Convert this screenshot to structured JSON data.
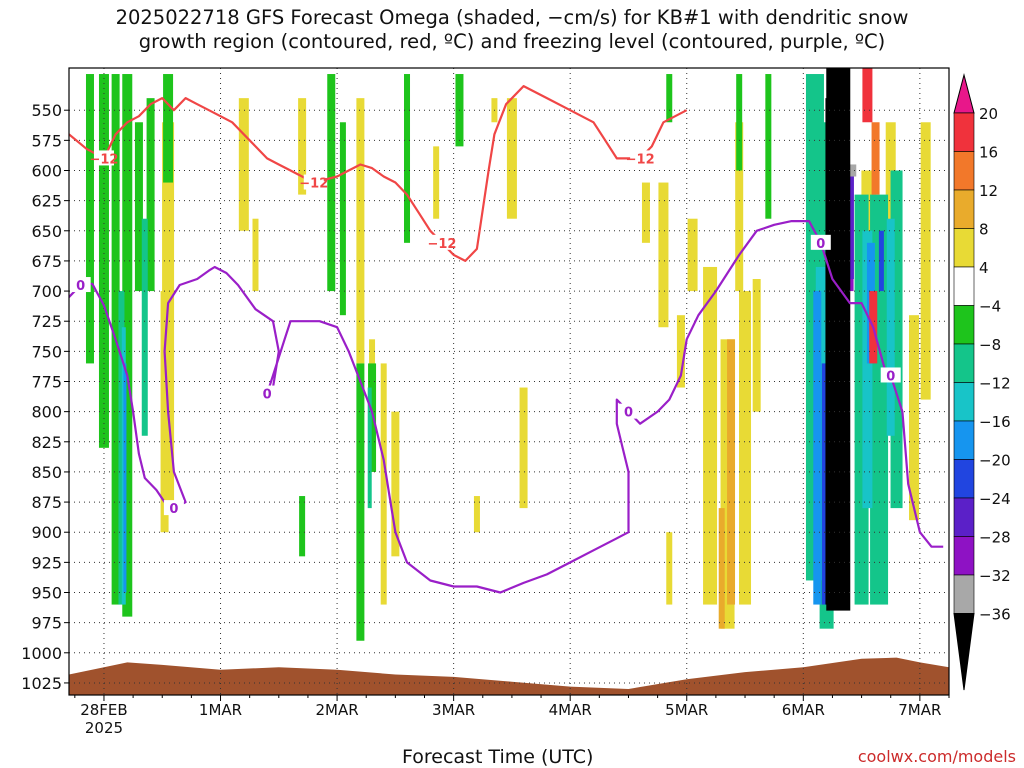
{
  "title_lines": [
    "2025022718 GFS Forecast Omega (shaded, −cm/s) for KB#1 with dendritic snow",
    "growth region (contoured, red, ºC) and freezing level (contoured, purple, ºC)"
  ],
  "credit": "coolwx.com/models",
  "chart_data": {
    "type": "heatmap",
    "title": "2025022718 GFS Forecast Omega (shaded, −cm/s) for KB#1 with dendritic snow growth region (contoured, red, ºC) and freezing level (contoured, purple, ºC)",
    "xlabel": "Forecast Time (UTC)",
    "ylabel": "",
    "x_ticks": [
      {
        "day": 0,
        "label": "28FEB",
        "sublabel": "2025"
      },
      {
        "day": 1,
        "label": "1MAR"
      },
      {
        "day": 2,
        "label": "2MAR"
      },
      {
        "day": 3,
        "label": "3MAR"
      },
      {
        "day": 4,
        "label": "4MAR"
      },
      {
        "day": 5,
        "label": "5MAR"
      },
      {
        "day": 6,
        "label": "6MAR"
      },
      {
        "day": 7,
        "label": "7MAR"
      }
    ],
    "x_range_days": [
      -0.3,
      7.25
    ],
    "y_ticks": [
      "550",
      "575",
      "600",
      "625",
      "650",
      "675",
      "700",
      "725",
      "750",
      "775",
      "800",
      "825",
      "850",
      "875",
      "900",
      "925",
      "950",
      "975",
      "1000",
      "1025"
    ],
    "y_range_hpa": [
      515,
      1035
    ],
    "grid": true,
    "colorbar": {
      "labels": [
        "20",
        "16",
        "12",
        "8",
        "4",
        "−4",
        "−8",
        "−12",
        "−16",
        "−20",
        "−24",
        "−28",
        "−32",
        "−36"
      ],
      "colors": [
        "#e8178a",
        "#f0323c",
        "#f2782a",
        "#e9ab2c",
        "#e8da35",
        "#ffffff",
        "#1ec41c",
        "#14c58a",
        "#18c4c8",
        "#1695ef",
        "#2145e0",
        "#5b20c8",
        "#8e12c4",
        "#a8a8a8",
        "#000000"
      ]
    },
    "terrain_color": "#a0522d",
    "freezing_level_0C": {
      "color": "#9a1fc8",
      "label": "0",
      "points": [
        [
          -0.3,
          705
        ],
        [
          -0.2,
          695
        ],
        [
          -0.1,
          694
        ],
        [
          0.0,
          712
        ],
        [
          0.1,
          740
        ],
        [
          0.2,
          770
        ],
        [
          0.25,
          800
        ],
        [
          0.3,
          835
        ],
        [
          0.35,
          855
        ],
        [
          0.45,
          865
        ],
        [
          0.52,
          875
        ],
        [
          0.6,
          880
        ],
        [
          0.7,
          875
        ],
        [
          0.6,
          850
        ],
        [
          0.55,
          800
        ],
        [
          0.52,
          750
        ],
        [
          0.55,
          710
        ],
        [
          0.65,
          695
        ],
        [
          0.8,
          690
        ],
        [
          0.9,
          683
        ],
        [
          0.95,
          680
        ],
        [
          1.05,
          685
        ],
        [
          1.15,
          695
        ],
        [
          1.3,
          715
        ],
        [
          1.45,
          725
        ],
        [
          1.5,
          750
        ],
        [
          1.45,
          780
        ],
        [
          1.4,
          785
        ],
        [
          1.45,
          770
        ],
        [
          1.55,
          740
        ],
        [
          1.6,
          725
        ],
        [
          1.75,
          725
        ],
        [
          1.85,
          725
        ],
        [
          2.0,
          730
        ],
        [
          2.1,
          750
        ],
        [
          2.2,
          775
        ],
        [
          2.3,
          800
        ],
        [
          2.4,
          840
        ],
        [
          2.45,
          870
        ],
        [
          2.5,
          900
        ],
        [
          2.6,
          925
        ],
        [
          2.8,
          940
        ],
        [
          3.0,
          945
        ],
        [
          3.2,
          945
        ],
        [
          3.4,
          950
        ],
        [
          3.6,
          942
        ],
        [
          3.8,
          935
        ],
        [
          4.0,
          925
        ],
        [
          4.2,
          915
        ],
        [
          4.4,
          905
        ],
        [
          4.5,
          900
        ],
        [
          4.5,
          850
        ],
        [
          4.45,
          830
        ],
        [
          4.4,
          810
        ],
        [
          4.4,
          790
        ],
        [
          4.5,
          800
        ],
        [
          4.6,
          810
        ],
        [
          4.75,
          800
        ],
        [
          4.85,
          790
        ],
        [
          4.95,
          770
        ],
        [
          5.0,
          740
        ],
        [
          5.1,
          720
        ],
        [
          5.25,
          700
        ],
        [
          5.45,
          670
        ],
        [
          5.6,
          650
        ],
        [
          5.75,
          645
        ],
        [
          5.9,
          642
        ],
        [
          6.05,
          642
        ],
        [
          6.15,
          660
        ],
        [
          6.25,
          690
        ],
        [
          6.4,
          710
        ],
        [
          6.5,
          710
        ],
        [
          6.6,
          730
        ],
        [
          6.7,
          765
        ],
        [
          6.75,
          770
        ],
        [
          6.85,
          800
        ],
        [
          6.9,
          860
        ],
        [
          7.0,
          900
        ],
        [
          7.1,
          912
        ],
        [
          7.2,
          912
        ]
      ]
    },
    "snow_growth_minus12C": {
      "color": "#f04646",
      "label": "−12",
      "points": [
        [
          -0.3,
          570
        ],
        [
          -0.15,
          582
        ],
        [
          0.0,
          590
        ],
        [
          0.1,
          570
        ],
        [
          0.2,
          560
        ],
        [
          0.3,
          555
        ],
        [
          0.4,
          545
        ],
        [
          0.5,
          540
        ],
        [
          0.6,
          550
        ],
        [
          0.7,
          540
        ],
        [
          0.8,
          545
        ],
        [
          0.9,
          550
        ],
        [
          1.0,
          555
        ],
        [
          1.1,
          560
        ],
        [
          1.2,
          570
        ],
        [
          1.3,
          580
        ],
        [
          1.4,
          590
        ],
        [
          1.5,
          595
        ],
        [
          1.6,
          600
        ],
        [
          1.7,
          605
        ],
        [
          1.8,
          610
        ],
        [
          2.0,
          605
        ],
        [
          2.1,
          600
        ],
        [
          2.2,
          595
        ],
        [
          2.3,
          598
        ],
        [
          2.4,
          605
        ],
        [
          2.5,
          610
        ],
        [
          2.6,
          620
        ],
        [
          2.7,
          635
        ],
        [
          2.8,
          650
        ],
        [
          2.9,
          660
        ],
        [
          3.0,
          670
        ],
        [
          3.1,
          675
        ],
        [
          3.2,
          665
        ],
        [
          3.3,
          600
        ],
        [
          3.35,
          570
        ],
        [
          3.45,
          545
        ],
        [
          3.6,
          530
        ],
        [
          3.8,
          540
        ],
        [
          4.0,
          550
        ],
        [
          4.2,
          560
        ],
        [
          4.3,
          575
        ],
        [
          4.4,
          590
        ],
        [
          4.5,
          590
        ],
        [
          4.6,
          590
        ],
        [
          4.7,
          580
        ],
        [
          4.8,
          560
        ],
        [
          5.0,
          550
        ]
      ]
    }
  }
}
